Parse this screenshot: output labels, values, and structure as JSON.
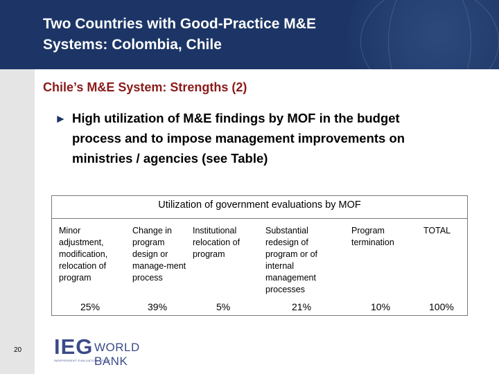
{
  "slide": {
    "title_line1": "Two Countries with Good-Practice M&E",
    "title_line2": "Systems: Colombia, Chile",
    "subtitle": "Chile’s M&E System: Strengths (2)",
    "bullet_marker": "►",
    "bullet_text": "High utilization of M&E findings by MOF in the budget process and to impose management improvements on ministries / agencies (see Table)",
    "page_number": "20"
  },
  "table": {
    "title": "Utilization of government evaluations by MOF",
    "columns": [
      {
        "header": "Minor adjustment, modification, relocation of program",
        "value": "25%"
      },
      {
        "header": "Change in program design or manage-ment process",
        "value": "39%"
      },
      {
        "header": "Institutional relocation of program",
        "value": "5%"
      },
      {
        "header": "Substantial redesign of program or of internal management processes",
        "value": "21%"
      },
      {
        "header": "Program termination",
        "value": "10%"
      },
      {
        "header": "TOTAL",
        "value": "100%"
      }
    ]
  },
  "logo": {
    "mark": "IEG",
    "name": "WORLD BANK",
    "tagline": "INDEPENDENT EVALUATION GROUP"
  },
  "colors": {
    "header_bg": "#1c3566",
    "subtitle": "#8b1a1a",
    "logo": "#3b4a8a"
  }
}
